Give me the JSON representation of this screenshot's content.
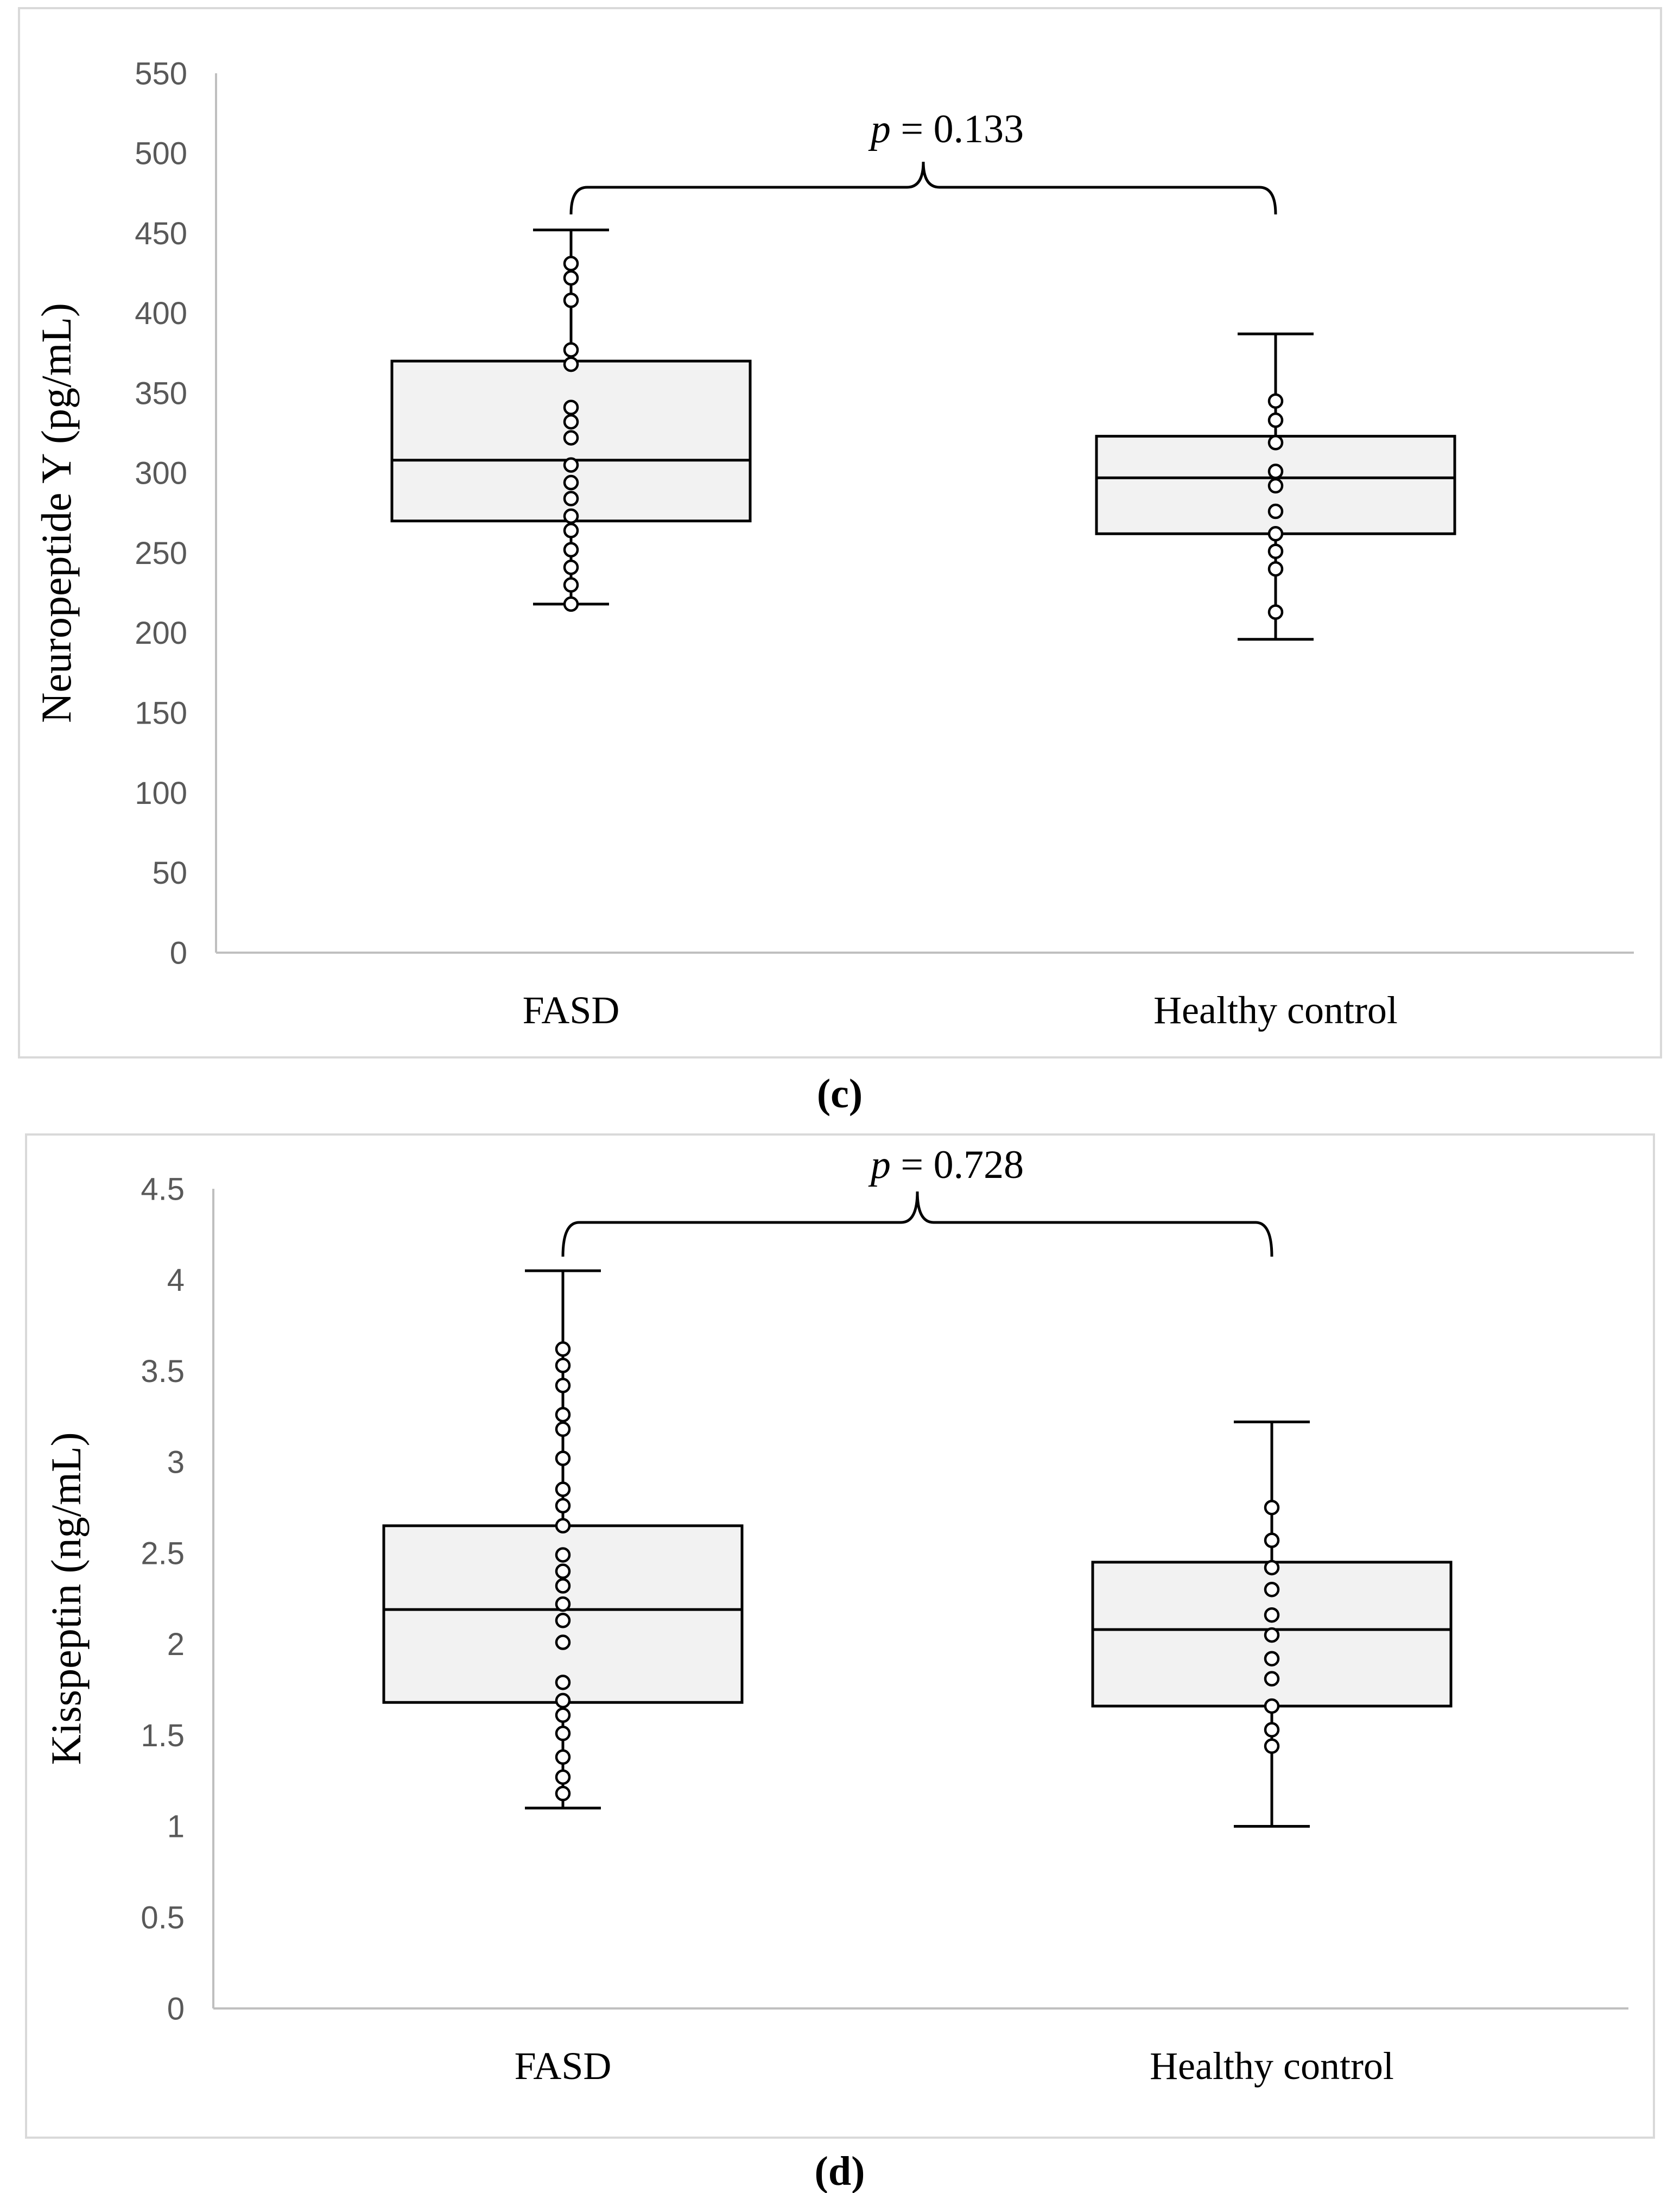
{
  "chart_data": [
    {
      "type": "box",
      "panel_label": "c",
      "ylabel": "Neuropeptide Y (pg/mL)",
      "xlabel": "",
      "ylim": [
        0,
        550
      ],
      "yticks": [
        0,
        50,
        100,
        150,
        200,
        250,
        300,
        350,
        400,
        450,
        500,
        550
      ],
      "ytick_labels": [
        "0",
        "50",
        "100",
        "150",
        "200",
        "250",
        "300",
        "350",
        "400",
        "450",
        "500",
        "550"
      ],
      "categories": [
        "FASD",
        "Healthy control"
      ],
      "p_label": "p",
      "p_value_text": "= 0.133",
      "groups": [
        {
          "name": "FASD",
          "min": 218,
          "q1": 270,
          "median": 308,
          "q3": 370,
          "max": 452,
          "points": [
            218,
            230,
            241,
            252,
            264,
            273,
            284,
            294,
            305,
            322,
            332,
            341,
            368,
            377,
            408,
            422,
            431
          ]
        },
        {
          "name": "Healthy control",
          "min": 196,
          "q1": 262,
          "median": 297,
          "q3": 323,
          "max": 387,
          "points": [
            213,
            240,
            251,
            262,
            276,
            292,
            301,
            319,
            333,
            345
          ]
        }
      ]
    },
    {
      "type": "box",
      "panel_label": "d",
      "ylabel": "Kisspeptin (ng/mL)",
      "xlabel": "",
      "ylim": [
        0,
        4.5
      ],
      "yticks": [
        0,
        0.5,
        1,
        1.5,
        2,
        2.5,
        3,
        3.5,
        4,
        4.5
      ],
      "ytick_labels": [
        "0",
        "0.5",
        "1",
        "1.5",
        "2",
        "2.5",
        "3",
        "3.5",
        "4",
        "4.5"
      ],
      "categories": [
        "FASD",
        "Healthy control"
      ],
      "p_label": "p",
      "p_value_text": "= 0.728",
      "groups": [
        {
          "name": "FASD",
          "min": 1.1,
          "q1": 1.68,
          "median": 2.19,
          "q3": 2.65,
          "max": 4.05,
          "points": [
            1.18,
            1.27,
            1.38,
            1.51,
            1.61,
            1.69,
            1.79,
            2.01,
            2.13,
            2.22,
            2.32,
            2.4,
            2.49,
            2.65,
            2.76,
            2.85,
            3.02,
            3.18,
            3.26,
            3.42,
            3.53,
            3.62
          ]
        },
        {
          "name": "Healthy control",
          "min": 1.0,
          "q1": 1.66,
          "median": 2.08,
          "q3": 2.45,
          "max": 3.22,
          "points": [
            1.44,
            1.53,
            1.66,
            1.81,
            1.92,
            2.05,
            2.16,
            2.3,
            2.42,
            2.57,
            2.75
          ]
        }
      ]
    }
  ]
}
